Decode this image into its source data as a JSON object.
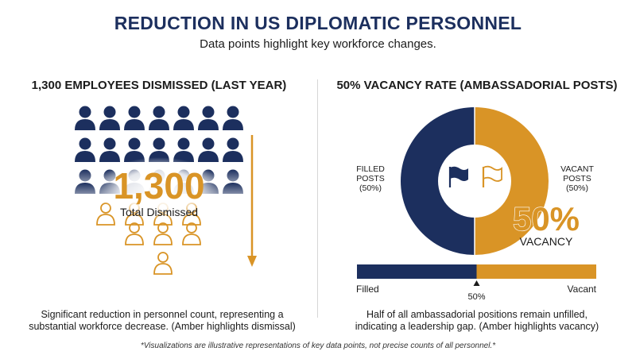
{
  "header": {
    "title": "REDUCTION IN US DIPLOMATIC PERSONNEL",
    "subtitle": "Data points highlight key workforce changes."
  },
  "left_panel": {
    "title": "1,300 EMPLOYEES DISMISSED (LAST YEAR)",
    "big_number": "1,300",
    "big_label": "Total Dismissed",
    "caption_line1": "Significant reduction in personnel count, representing a",
    "caption_line2": "substantial workforce decrease. (Amber highlights dismissal)"
  },
  "right_panel": {
    "title": "50% VACANCY RATE (AMBASSADORIAL POSTS)",
    "filled_label_1": "FILLED",
    "filled_label_2": "POSTS",
    "filled_label_3": "(50%)",
    "vacant_label_1": "VACANT",
    "vacant_label_2": "POSTS",
    "vacant_label_3": "(50%)",
    "big_number": "50%",
    "big_label": "VACANCY",
    "bar_left_label": "Filled",
    "bar_right_label": "Vacant",
    "bar_marker_label": "50%",
    "caption_line1": "Half of all ambassadorial positions remain unfilled,",
    "caption_line2": "indicating a leadership gap. (Amber highlights vacancy)"
  },
  "footnote": "*Visualizations are illustrative representations of key data points, not precise counts of all personnel.*",
  "colors": {
    "navy": "#1c2f5e",
    "amber": "#d99426",
    "divider": "#d6d6d6"
  },
  "chart_data": [
    {
      "type": "pictogram",
      "title": "1,300 EMPLOYEES DISMISSED (LAST YEAR)",
      "value": 1300,
      "label": "Total Dismissed"
    },
    {
      "type": "pie",
      "title": "50% VACANCY RATE (AMBASSADORIAL POSTS)",
      "donut": true,
      "categories": [
        "FILLED POSTS",
        "VACANT POSTS"
      ],
      "values": [
        50,
        50
      ],
      "colors": [
        "#1c2f5e",
        "#d99426"
      ]
    },
    {
      "type": "bar",
      "orientation": "horizontal-stacked",
      "categories": [
        "Filled",
        "Vacant"
      ],
      "values": [
        50,
        50
      ],
      "marker": 50
    }
  ]
}
